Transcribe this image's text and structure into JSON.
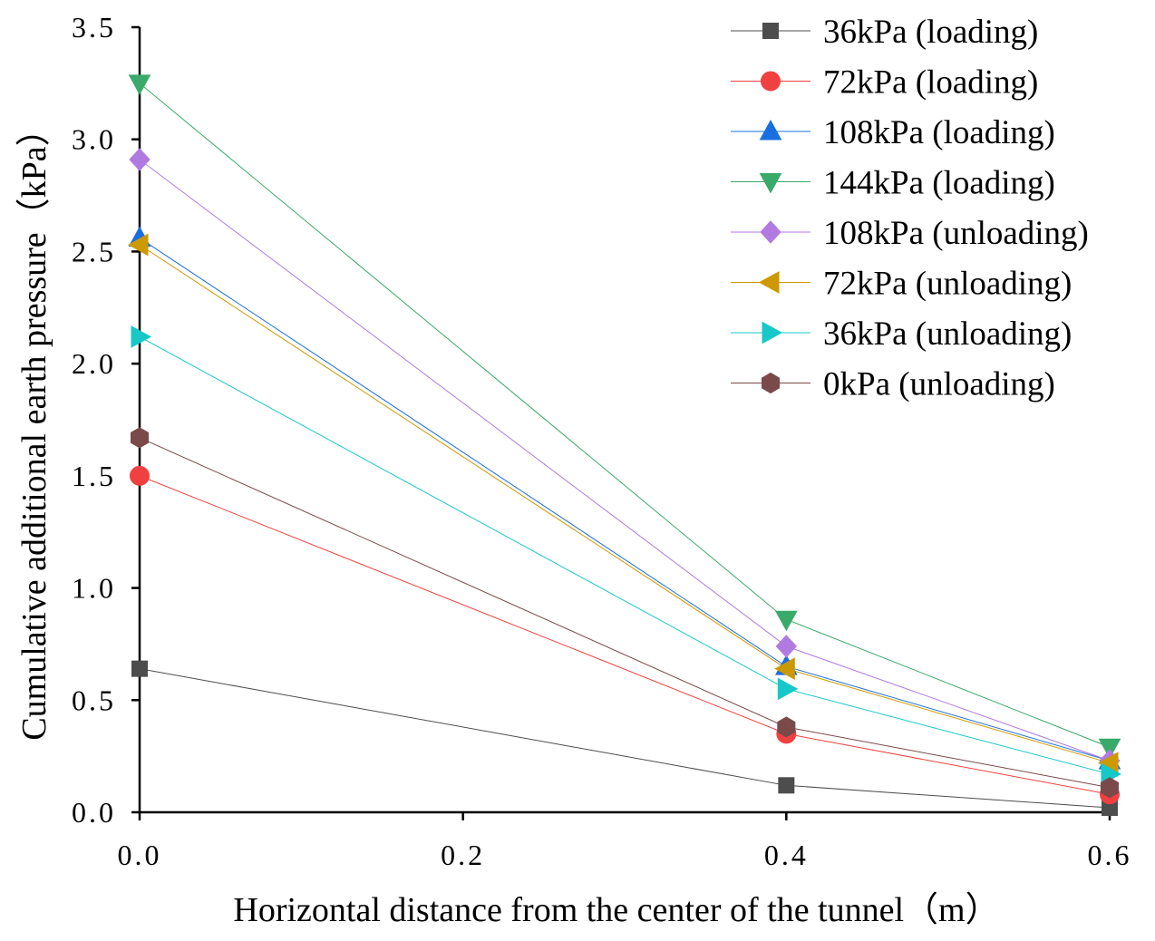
{
  "chart_data": {
    "type": "line",
    "title": "",
    "xlabel": "Horizontal distance from the center of the tunnel（m）",
    "ylabel": "Cumulative additional earth pressure（kPa）",
    "x": [
      0.0,
      0.4,
      0.6
    ],
    "xlim": [
      0.0,
      0.6
    ],
    "ylim": [
      0.0,
      3.5
    ],
    "x_ticks": [
      "0.0",
      "0.2",
      "0.4",
      "0.6"
    ],
    "y_ticks": [
      "0.0",
      "0.5",
      "1.0",
      "1.5",
      "2.0",
      "2.5",
      "3.0",
      "3.5"
    ],
    "x_tick_values": [
      0.0,
      0.2,
      0.4,
      0.6
    ],
    "y_tick_values": [
      0.0,
      0.5,
      1.0,
      1.5,
      2.0,
      2.5,
      3.0,
      3.5
    ],
    "grid": false,
    "legend_position": "top-right",
    "series": [
      {
        "name": "36kPa (loading)",
        "values": [
          0.64,
          0.12,
          0.02
        ],
        "color": "#4d4d4d",
        "marker": "square"
      },
      {
        "name": "72kPa (loading)",
        "values": [
          1.5,
          0.35,
          0.08
        ],
        "color": "#f04040",
        "marker": "circle"
      },
      {
        "name": "108kPa (loading)",
        "values": [
          2.56,
          0.65,
          0.23
        ],
        "color": "#1a6fe0",
        "marker": "triangle-up"
      },
      {
        "name": "144kPa (loading)",
        "values": [
          3.25,
          0.86,
          0.29
        ],
        "color": "#3aaa6a",
        "marker": "triangle-down"
      },
      {
        "name": "108kPa (unloading)",
        "values": [
          2.91,
          0.74,
          0.23
        ],
        "color": "#b07ae0",
        "marker": "diamond"
      },
      {
        "name": "72kPa (unloading)",
        "values": [
          2.53,
          0.64,
          0.22
        ],
        "color": "#cc9900",
        "marker": "triangle-left"
      },
      {
        "name": "36kPa (unloading)",
        "values": [
          2.12,
          0.55,
          0.17
        ],
        "color": "#17c8c8",
        "marker": "triangle-right"
      },
      {
        "name": "0kPa (unloading)",
        "values": [
          1.67,
          0.38,
          0.11
        ],
        "color": "#7a4a4a",
        "marker": "hexagon"
      }
    ]
  }
}
